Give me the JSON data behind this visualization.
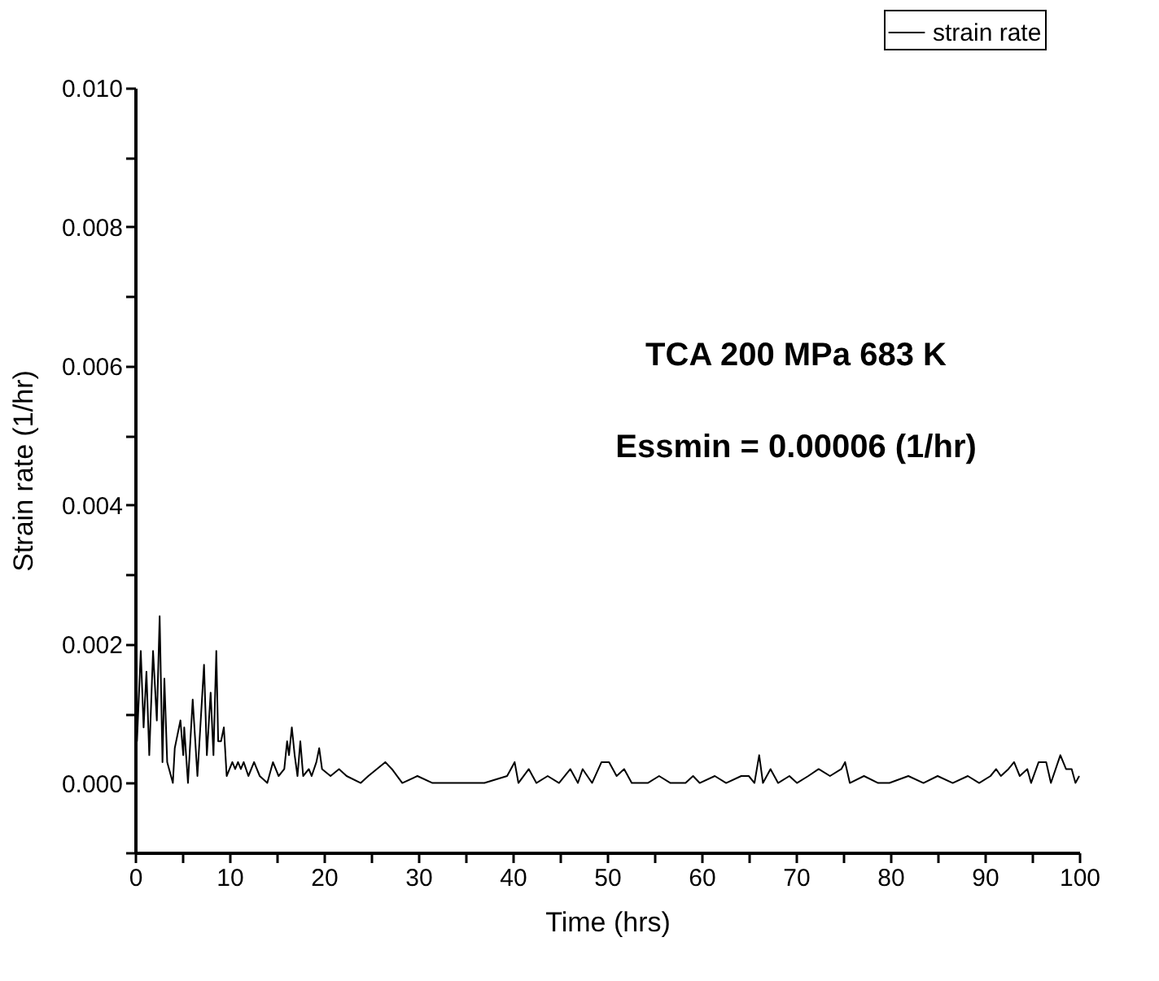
{
  "chart_data": {
    "type": "line",
    "xlabel": "Time (hrs)",
    "ylabel": "Strain rate (1/hr)",
    "annotations": [
      "TCA 200 MPa 683 K",
      "Essmin = 0.00006 (1/hr)"
    ],
    "legend": "top right",
    "grid": false,
    "marker": "none",
    "line_style": "solid",
    "xlim": [
      0,
      100
    ],
    "ylim": [
      -0.001,
      0.01
    ],
    "xticks": [
      0,
      {
        "value": 5,
        "label": null
      },
      10,
      {
        "value": 15,
        "label": null
      },
      20,
      {
        "value": 25,
        "label": null
      },
      30,
      {
        "value": 35,
        "label": null
      },
      40,
      {
        "value": 45,
        "label": null
      },
      50,
      {
        "value": 55,
        "label": null
      },
      60,
      {
        "value": 65,
        "label": null
      },
      70,
      {
        "value": 75,
        "label": null
      },
      80,
      {
        "value": 85,
        "label": null
      },
      90,
      {
        "value": 95,
        "label": null
      },
      100
    ],
    "yticks": [
      {
        "value": -0.001,
        "label": null
      },
      {
        "value": 0,
        "label": "0.000"
      },
      {
        "value": 0.001,
        "label": null
      },
      {
        "value": 0.002,
        "label": "0.002"
      },
      {
        "value": 0.003,
        "label": null
      },
      {
        "value": 0.004,
        "label": "0.004"
      },
      {
        "value": 0.005,
        "label": null
      },
      {
        "value": 0.006,
        "label": "0.006"
      },
      {
        "value": 0.007,
        "label": null
      },
      {
        "value": 0.008,
        "label": "0.008"
      },
      {
        "value": 0.009,
        "label": null
      },
      {
        "value": 0.01,
        "label": "0.010"
      }
    ],
    "series": [
      {
        "name": "strain rate",
        "color": "#000000",
        "x": [
          0,
          0.2,
          0.6,
          0.9,
          1.2,
          1.5,
          1.9,
          2.3,
          2.6,
          2.9,
          3.1,
          3.4,
          4.0,
          4.2,
          4.8,
          5.1,
          5.2,
          5.6,
          6.1,
          6.6,
          7.3,
          7.6,
          8.0,
          8.3,
          8.6,
          8.8,
          9.1,
          9.4,
          9.7,
          10.3,
          10.6,
          10.9,
          11.2,
          11.5,
          12.0,
          12.6,
          13.2,
          14.0,
          14.6,
          15.2,
          15.8,
          16.1,
          16.3,
          16.6,
          16.9,
          17.2,
          17.5,
          17.8,
          18.4,
          18.7,
          19.2,
          19.5,
          19.8,
          20.7,
          21.6,
          22.4,
          23.9,
          24.7,
          25.6,
          26.5,
          27.2,
          28.3,
          29.9,
          31.5,
          32.3,
          34.6,
          37.0,
          39.4,
          40.2,
          40.6,
          41.7,
          42.5,
          43.7,
          44.9,
          46.1,
          46.9,
          47.4,
          48.4,
          49.4,
          50.2,
          51.0,
          51.8,
          52.6,
          54.3,
          55.5,
          56.7,
          58.3,
          59.1,
          59.8,
          61.4,
          62.6,
          64.2,
          65.0,
          65.6,
          66.1,
          66.5,
          67.3,
          68.1,
          69.3,
          70.1,
          71.3,
          72.4,
          73.6,
          74.8,
          75.2,
          75.7,
          77.2,
          78.7,
          79.9,
          81.9,
          83.5,
          85.0,
          86.6,
          88.2,
          89.4,
          90.6,
          91.2,
          91.7,
          92.5,
          93.1,
          93.7,
          94.5,
          94.9,
          95.7,
          96.5,
          97.0,
          98.0,
          98.6,
          99.2,
          99.6,
          100
        ],
        "values": [
          0.01,
          0.0006,
          0.0019,
          0.0008,
          0.0016,
          0.0004,
          0.0019,
          0.0009,
          0.0024,
          0.0003,
          0.0015,
          0.0003,
          0.0,
          0.0005,
          0.0009,
          0.0004,
          0.0008,
          0.0,
          0.0012,
          0.0001,
          0.0017,
          0.0004,
          0.0013,
          0.0004,
          0.0019,
          0.0006,
          0.0006,
          0.0008,
          0.0001,
          0.0003,
          0.0002,
          0.0003,
          0.0002,
          0.0003,
          0.0001,
          0.0003,
          0.0001,
          0.0,
          0.0003,
          0.0001,
          0.0002,
          0.0006,
          0.0004,
          0.0008,
          0.0004,
          0.0001,
          0.0006,
          0.0001,
          0.0002,
          0.0001,
          0.0003,
          0.0005,
          0.0002,
          0.0001,
          0.0002,
          0.0001,
          0.0,
          0.0001,
          0.0002,
          0.0003,
          0.0002,
          0.0,
          0.0001,
          0.0,
          0.0,
          0.0,
          0.0,
          0.0001,
          0.0003,
          0.0,
          0.0002,
          0.0,
          0.0001,
          0.0,
          0.0002,
          0.0,
          0.0002,
          0.0,
          0.0003,
          0.0003,
          0.0001,
          0.0002,
          0.0,
          0.0,
          0.0001,
          0.0,
          0.0,
          0.0001,
          0.0,
          0.0001,
          0.0,
          0.0001,
          0.0001,
          0.0,
          0.0004,
          0.0,
          0.0002,
          0.0,
          0.0001,
          0.0,
          0.0001,
          0.0002,
          0.0001,
          0.0002,
          0.0003,
          0.0,
          0.0001,
          0.0,
          0.0,
          0.0001,
          0.0,
          0.0001,
          0.0,
          0.0001,
          0.0,
          0.0001,
          0.0002,
          0.0001,
          0.0002,
          0.0003,
          0.0001,
          0.0002,
          0.0,
          0.0003,
          0.0003,
          0.0,
          0.0004,
          0.0002,
          0.0002,
          0.0,
          0.0001
        ]
      }
    ]
  }
}
